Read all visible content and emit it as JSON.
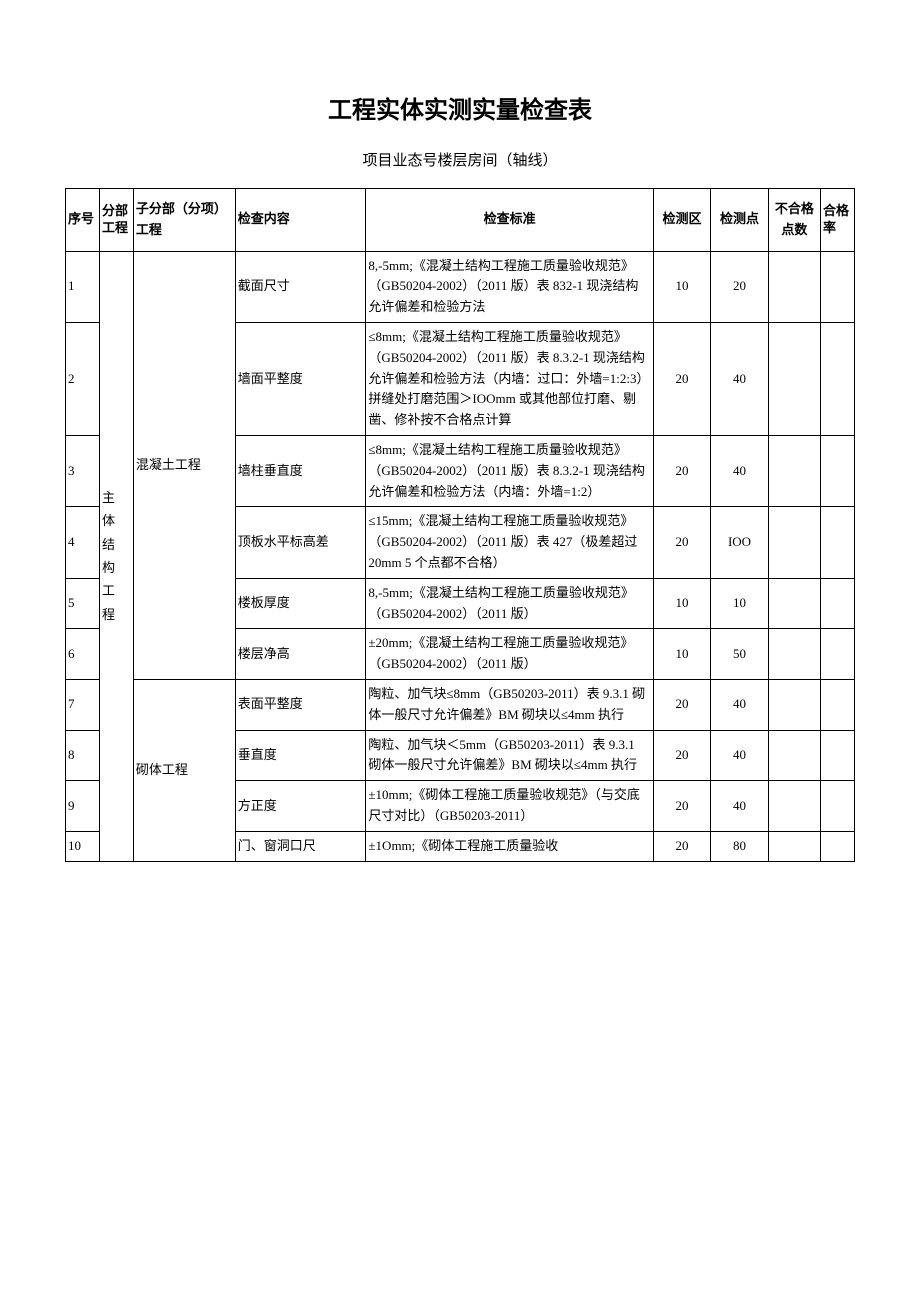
{
  "title": "工程实体实测实量检查表",
  "subtitle": "项目业态号楼层房间（轴线）",
  "headers": {
    "seq": "序号",
    "division": "分部工程",
    "subdivision": "子分部（分项）工程",
    "item": "检查内容",
    "standard": "检查标准",
    "zone": "检测区",
    "point": "检测点",
    "fail": "不合格点数",
    "pass": "合格率"
  },
  "division_label": "主　体结　构工程",
  "subdivisions": {
    "concrete": "混凝土工程",
    "masonry": "砌体工程"
  },
  "rows": [
    {
      "seq": "1",
      "item": "截面尺寸",
      "standard": "8,-5mm;《混凝土结构工程施工质量验收规范》（GB50204-2002）（2011 版）表 832-1 现浇结构允许偏差和检验方法",
      "zone": "10",
      "point": "20"
    },
    {
      "seq": "2",
      "item": "墙面平整度",
      "standard": "≤8mm;《混凝土结构工程施工质量验收规范》（GB50204-2002）（2011 版）表 8.3.2-1 现浇结构允许偏差和检验方法（内墙：过口：外墙=1:2:3）\n拼缝处打磨范围＞IOOmm 或其他部位打磨、剔凿、修补按不合格点计算",
      "zone": "20",
      "point": "40"
    },
    {
      "seq": "3",
      "item": "墙柱垂直度",
      "standard": "≤8mm;《混凝土结构工程施工质量验收规范》（GB50204-2002）（2011 版）表 8.3.2-1 现浇结构允许偏差和检验方法（内墙：外墙=1:2）",
      "zone": "20",
      "point": "40"
    },
    {
      "seq": "4",
      "item": "顶板水平标高差",
      "standard": "≤15mm;《混凝土结构工程施工质量验收规范》（GB50204-2002）（2011 版）表 427（极差超过20mm 5 个点都不合格）",
      "zone": "20",
      "point": "IOO"
    },
    {
      "seq": "5",
      "item": "楼板厚度",
      "standard": "8,-5mm;《混凝土结构工程施工质量验收规范》（GB50204-2002）（2011 版）",
      "zone": "10",
      "point": "10"
    },
    {
      "seq": "6",
      "item": "楼层净高",
      "standard": "±20mm;《混凝土结构工程施工质量验收规范》（GB50204-2002）（2011 版）",
      "zone": "10",
      "point": "50"
    },
    {
      "seq": "7",
      "item": "表面平整度",
      "standard": "\n陶粒、加气块≤8mm（GB50203-2011）表 9.3.1 砌体一般尺寸允许偏差》BM 砌块以≤4mm 执行",
      "zone": "20",
      "point": "40"
    },
    {
      "seq": "8",
      "item": "垂直度",
      "standard": "\n陶粒、加气块＜5mm（GB50203-2011）表 9.3.1 砌体一般尺寸允许偏差》BM 砌块以≤4mm 执行",
      "zone": "20",
      "point": "40"
    },
    {
      "seq": "9",
      "item": "方正度",
      "standard": "±10mm;《砌体工程施工质量验收规范》（与交底尺寸对比）（GB50203-2011）",
      "zone": "20",
      "point": "40"
    },
    {
      "seq": "10",
      "item": "门、窗洞口尺",
      "standard": "±1Omm;《砌体工程施工质量验收",
      "zone": "20",
      "point": "80"
    }
  ],
  "styling": {
    "page_bg": "#ffffff",
    "text_color": "#000000",
    "border_color": "#000000",
    "title_fontsize": 24,
    "subtitle_fontsize": 15,
    "cell_fontsize": 13,
    "font_family": "SimSun"
  }
}
